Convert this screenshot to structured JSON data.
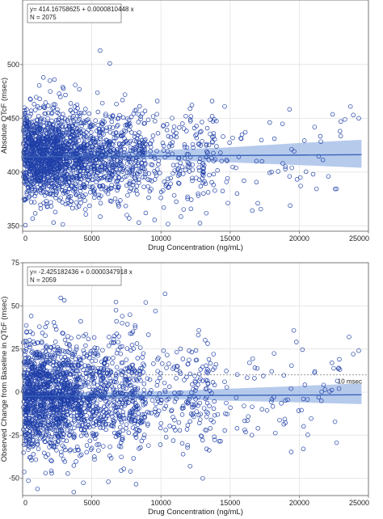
{
  "colors": {
    "point": "#1f3fa8",
    "fit_line": "#3a63b8",
    "band": "#9db8e6",
    "frame": "#6b6b6b",
    "grid": "#e3e3e3",
    "ref_line": "#8a8a8a"
  },
  "chart_data": [
    {
      "type": "scatter",
      "title": "",
      "xlabel": "Drug Concentration (ng/mL)",
      "ylabel": "Absolute QTcF (msec)",
      "xlim": [
        0,
        25000
      ],
      "ylim": [
        345,
        560
      ],
      "x_ticks": [
        0,
        5000,
        10000,
        15000,
        20000,
        25000
      ],
      "x_tick_labels": [
        "0",
        "5000",
        "10000",
        "15000",
        "20000",
        "25000"
      ],
      "y_ticks": [
        350,
        400,
        450,
        500
      ],
      "y_tick_labels": [
        "350",
        "400",
        "450",
        "500"
      ],
      "grid": true,
      "legend": {
        "placement": "top-left",
        "equation": "y= 414.16758625 + 0.0000810448 x",
        "n_label": "N = 2075"
      },
      "regression": {
        "intercept": 414.16758625,
        "slope": 8.10448e-05,
        "band": [
          [
            0,
            409,
            419
          ],
          [
            5000,
            412.5,
            419
          ],
          [
            10000,
            411.5,
            420.5
          ],
          [
            15000,
            409,
            423
          ],
          [
            20000,
            406.5,
            427
          ],
          [
            24500,
            404,
            430
          ]
        ]
      },
      "series": [
        {
          "cloud": {
            "count": 2075,
            "seed": 11,
            "y_center": 415,
            "y_spread": 21,
            "y_min": 350,
            "y_max": 515
          },
          "points": [
            [
              1500,
              488
            ],
            [
              2300,
              486
            ],
            [
              5600,
              513
            ],
            [
              6300,
              501
            ],
            [
              4100,
              477
            ],
            [
              2000,
              475
            ],
            [
              2900,
              479
            ],
            [
              3800,
              481
            ],
            [
              7400,
              472
            ],
            [
              13700,
              466
            ],
            [
              14600,
              461
            ],
            [
              12100,
              459
            ],
            [
              23700,
              461
            ],
            [
              23900,
              453
            ],
            [
              24300,
              450
            ],
            [
              23300,
              449
            ],
            [
              23000,
              447
            ],
            [
              21000,
              398
            ],
            [
              19300,
              396
            ],
            [
              22100,
              396
            ],
            [
              20100,
              387
            ],
            [
              17000,
              371
            ],
            [
              15500,
              380
            ],
            [
              13800,
              388
            ],
            [
              16000,
              392
            ],
            [
              18000,
              400
            ],
            [
              19000,
              405
            ],
            [
              17300,
              410
            ],
            [
              15800,
              431
            ],
            [
              14300,
              418
            ],
            [
              12500,
              434
            ],
            [
              11800,
              452
            ],
            [
              16100,
              437
            ],
            [
              8900,
              362
            ],
            [
              8400,
              353
            ],
            [
              7700,
              357
            ],
            [
              10200,
              367
            ],
            [
              12700,
              378
            ],
            [
              13000,
              398
            ],
            [
              11200,
              402
            ],
            [
              9300,
              384
            ],
            [
              6900,
              386
            ]
          ]
        }
      ]
    },
    {
      "type": "scatter",
      "title": "",
      "xlabel": "Drug Concentration (ng/mL)",
      "ylabel": "Observed Change from Baseline in QTcF (msec)",
      "xlim": [
        0,
        25000
      ],
      "ylim": [
        -60,
        75
      ],
      "x_ticks": [
        0,
        5000,
        10000,
        15000,
        20000,
        25000
      ],
      "x_tick_labels": [
        "0",
        "5000",
        "10000",
        "15000",
        "20000",
        "25000"
      ],
      "y_ticks": [
        -50,
        -25,
        0,
        25,
        50,
        75
      ],
      "y_tick_labels": [
        "-50",
        "-25",
        "0",
        "25",
        "50",
        "75"
      ],
      "grid": true,
      "legend": {
        "placement": "top-left",
        "equation": "y= -2.425182436 + 0.0000347918 x",
        "n_label": "N = 2059"
      },
      "reference_line": {
        "y": 10,
        "label": "10 msec"
      },
      "regression": {
        "intercept": -2.425182436,
        "slope": 3.47918e-05,
        "band": [
          [
            0,
            -5,
            0
          ],
          [
            5000,
            -3.5,
            0
          ],
          [
            10000,
            -4,
            0.5
          ],
          [
            15000,
            -5,
            2
          ],
          [
            20000,
            -6,
            3.5
          ],
          [
            24500,
            -7,
            5
          ]
        ]
      },
      "series": [
        {
          "cloud": {
            "count": 2059,
            "seed": 29,
            "y_center": -2,
            "y_spread": 16,
            "y_min": -57,
            "y_max": 56
          },
          "points": [
            [
              5200,
              70
            ],
            [
              10300,
              57
            ],
            [
              8900,
              52
            ],
            [
              9600,
              47
            ],
            [
              7200,
              44
            ],
            [
              4200,
              41
            ],
            [
              23600,
              32
            ],
            [
              24300,
              24
            ],
            [
              23900,
              22
            ],
            [
              22900,
              19
            ],
            [
              16400,
              17
            ],
            [
              18000,
              12
            ],
            [
              17300,
              -10
            ],
            [
              16000,
              -8
            ],
            [
              14100,
              -13
            ],
            [
              12100,
              -17
            ],
            [
              15500,
              -21
            ],
            [
              13200,
              -22
            ],
            [
              11600,
              -36
            ],
            [
              12100,
              -43
            ],
            [
              7800,
              -46
            ],
            [
              6200,
              -52
            ],
            [
              3700,
              -58
            ],
            [
              2100,
              -47
            ],
            [
              6300,
              -37
            ],
            [
              5200,
              -39
            ],
            [
              9100,
              -31
            ],
            [
              19400,
              2
            ],
            [
              20300,
              -4
            ],
            [
              21400,
              -3
            ],
            [
              14600,
              6
            ],
            [
              13800,
              22
            ],
            [
              12700,
              33
            ],
            [
              11100,
              8
            ],
            [
              10400,
              14
            ]
          ]
        }
      ]
    }
  ]
}
